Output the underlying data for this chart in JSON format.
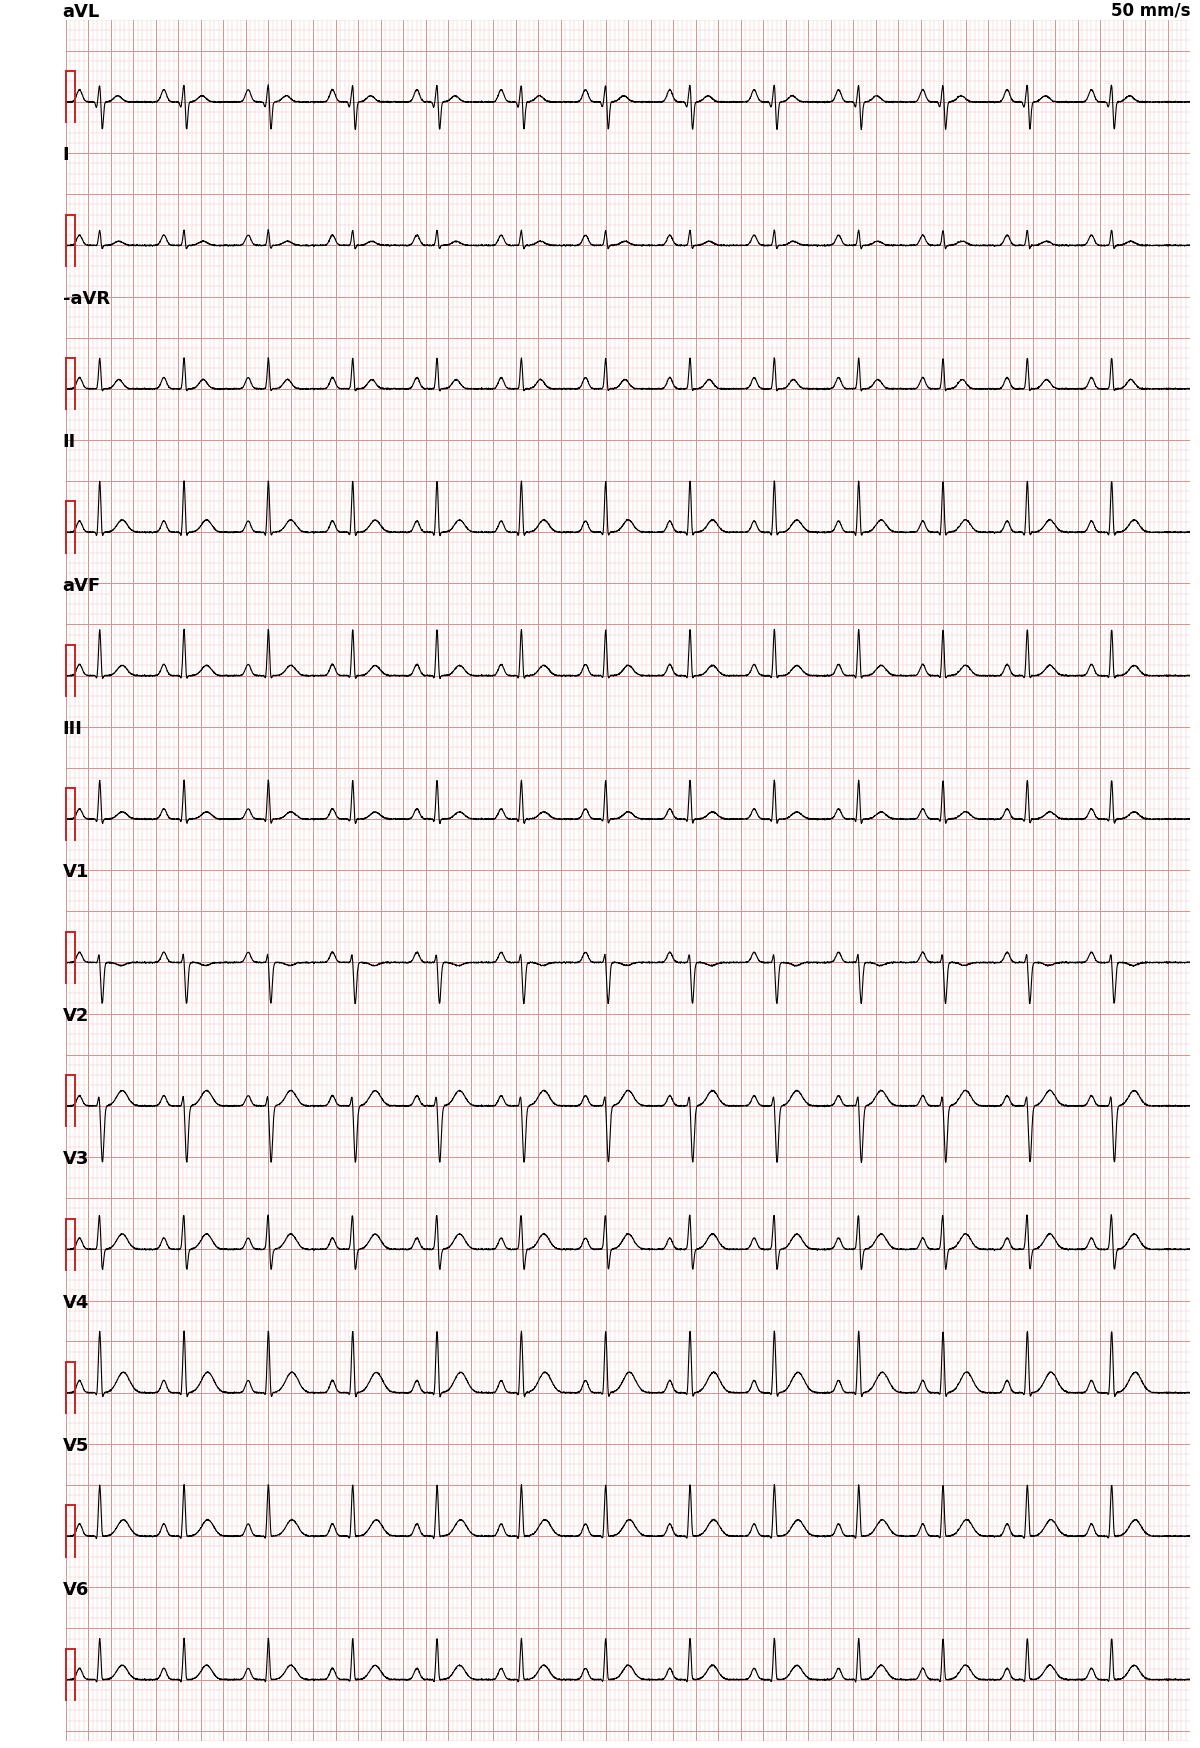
{
  "leads": [
    "aVL",
    "I",
    "-aVR",
    "II",
    "aVF",
    "III",
    "V1",
    "V2",
    "V3",
    "V4",
    "V5",
    "V6"
  ],
  "speed_label": "50 mm/s",
  "bg_color": "#ffffff",
  "grid_minor_color": "#f0c8c8",
  "grid_major_color": "#d89090",
  "signal_color": "#000000",
  "cal_color": "#cc2222",
  "fig_width": 12.0,
  "fig_height": 17.49,
  "dpi": 100,
  "n_rows": 12,
  "heart_rate": 80,
  "label_fontsize": 13,
  "speed_fontsize": 12
}
